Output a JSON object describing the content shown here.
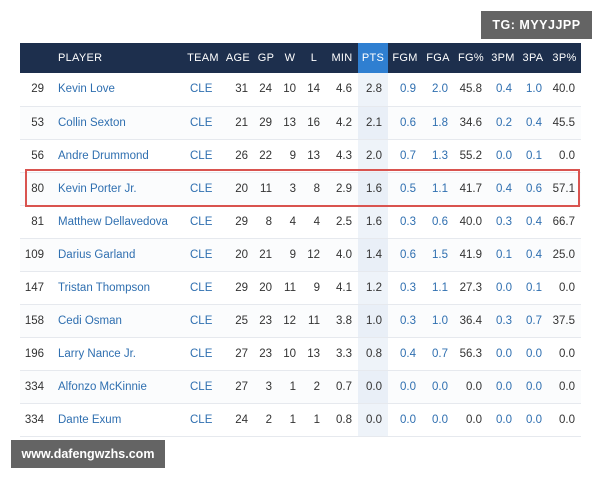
{
  "watermarks": {
    "top_right": "TG: MYYJJPP",
    "bottom_left": "www.dafengwzhs.com"
  },
  "columns": [
    "",
    "PLAYER",
    "TEAM",
    "AGE",
    "GP",
    "W",
    "L",
    "MIN",
    "PTS",
    "FGM",
    "FGA",
    "FG%",
    "3PM",
    "3PA",
    "3P%"
  ],
  "highlight_row": 3,
  "rows": [
    [
      "29",
      "Kevin Love",
      "CLE",
      "31",
      "24",
      "10",
      "14",
      "4.6",
      "2.8",
      "0.9",
      "2.0",
      "45.8",
      "0.4",
      "1.0",
      "40.0"
    ],
    [
      "53",
      "Collin Sexton",
      "CLE",
      "21",
      "29",
      "13",
      "16",
      "4.2",
      "2.1",
      "0.6",
      "1.8",
      "34.6",
      "0.2",
      "0.4",
      "45.5"
    ],
    [
      "56",
      "Andre Drummond",
      "CLE",
      "26",
      "22",
      "9",
      "13",
      "4.3",
      "2.0",
      "0.7",
      "1.3",
      "55.2",
      "0.0",
      "0.1",
      "0.0"
    ],
    [
      "80",
      "Kevin Porter Jr.",
      "CLE",
      "20",
      "11",
      "3",
      "8",
      "2.9",
      "1.6",
      "0.5",
      "1.1",
      "41.7",
      "0.4",
      "0.6",
      "57.1"
    ],
    [
      "81",
      "Matthew Dellavedova",
      "CLE",
      "29",
      "8",
      "4",
      "4",
      "2.5",
      "1.6",
      "0.3",
      "0.6",
      "40.0",
      "0.3",
      "0.4",
      "66.7"
    ],
    [
      "109",
      "Darius Garland",
      "CLE",
      "20",
      "21",
      "9",
      "12",
      "4.0",
      "1.4",
      "0.6",
      "1.5",
      "41.9",
      "0.1",
      "0.4",
      "25.0"
    ],
    [
      "147",
      "Tristan Thompson",
      "CLE",
      "29",
      "20",
      "11",
      "9",
      "4.1",
      "1.2",
      "0.3",
      "1.1",
      "27.3",
      "0.0",
      "0.1",
      "0.0"
    ],
    [
      "158",
      "Cedi Osman",
      "CLE",
      "25",
      "23",
      "12",
      "11",
      "3.8",
      "1.0",
      "0.3",
      "1.0",
      "36.4",
      "0.3",
      "0.7",
      "37.5"
    ],
    [
      "196",
      "Larry Nance Jr.",
      "CLE",
      "27",
      "23",
      "10",
      "13",
      "3.3",
      "0.8",
      "0.4",
      "0.7",
      "56.3",
      "0.0",
      "0.0",
      "0.0"
    ],
    [
      "334",
      "Alfonzo McKinnie",
      "CLE",
      "27",
      "3",
      "1",
      "2",
      "0.7",
      "0.0",
      "0.0",
      "0.0",
      "0.0",
      "0.0",
      "0.0",
      "0.0"
    ],
    [
      "334",
      "Dante Exum",
      "CLE",
      "24",
      "2",
      "1",
      "1",
      "0.8",
      "0.0",
      "0.0",
      "0.0",
      "0.0",
      "0.0",
      "0.0",
      "0.0"
    ]
  ],
  "colors": {
    "header_bg": "#1d2f4d",
    "pts_header_bg": "#2f7fd1",
    "link": "#2f6fb0",
    "highlight": "#d9534f"
  }
}
